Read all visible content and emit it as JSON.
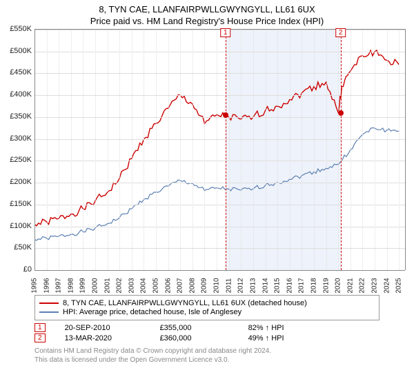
{
  "title_line1": "8, TYN CAE, LLANFAIRPWLLGWYNGYLL, LL61 6UX",
  "title_line2": "Price paid vs. HM Land Registry's House Price Index (HPI)",
  "chart": {
    "background_color": "#ffffff",
    "grid_color": "#dddddd",
    "axis_color": "#888888",
    "font_label_size": 11,
    "ylim": [
      0,
      550000
    ],
    "ytick_step": 50000,
    "ytick_labels": [
      "£0",
      "£50K",
      "£100K",
      "£150K",
      "£200K",
      "£250K",
      "£300K",
      "£350K",
      "£400K",
      "£450K",
      "£500K",
      "£550K"
    ],
    "xlim_years": [
      1995,
      2025.5
    ],
    "xtick_years": [
      1995,
      1996,
      1997,
      1998,
      1999,
      2000,
      2001,
      2002,
      2003,
      2004,
      2005,
      2006,
      2007,
      2008,
      2009,
      2010,
      2011,
      2012,
      2013,
      2014,
      2015,
      2016,
      2017,
      2018,
      2019,
      2020,
      2021,
      2022,
      2023,
      2024,
      2025
    ],
    "shaded_region": {
      "from_year": 2010.72,
      "to_year": 2020.2,
      "color": "#eef2fa"
    },
    "series": {
      "price": {
        "color": "#cc0000",
        "width": 1.4,
        "noise": 9000,
        "points_year_value": [
          [
            1995,
            105000
          ],
          [
            1996,
            110000
          ],
          [
            1997,
            118000
          ],
          [
            1998,
            128000
          ],
          [
            1999,
            140000
          ],
          [
            2000,
            158000
          ],
          [
            2001,
            178000
          ],
          [
            2002,
            210000
          ],
          [
            2003,
            255000
          ],
          [
            2004,
            300000
          ],
          [
            2005,
            335000
          ],
          [
            2006,
            370000
          ],
          [
            2007,
            400000
          ],
          [
            2008,
            380000
          ],
          [
            2009,
            335000
          ],
          [
            2010,
            355000
          ],
          [
            2011,
            350000
          ],
          [
            2012,
            345000
          ],
          [
            2013,
            350000
          ],
          [
            2014,
            365000
          ],
          [
            2015,
            375000
          ],
          [
            2016,
            390000
          ],
          [
            2017,
            405000
          ],
          [
            2018,
            420000
          ],
          [
            2019,
            430000
          ],
          [
            2020,
            360000
          ],
          [
            2020.3,
            420000
          ],
          [
            2021,
            455000
          ],
          [
            2022,
            490000
          ],
          [
            2023,
            500000
          ],
          [
            2024,
            480000
          ],
          [
            2025,
            470000
          ]
        ]
      },
      "hpi": {
        "color": "#5b7fb2",
        "width": 1.2,
        "noise": 5000,
        "points_year_value": [
          [
            1995,
            70000
          ],
          [
            1996,
            73000
          ],
          [
            1997,
            77000
          ],
          [
            1998,
            82000
          ],
          [
            1999,
            88000
          ],
          [
            2000,
            96000
          ],
          [
            2001,
            106000
          ],
          [
            2002,
            120000
          ],
          [
            2003,
            140000
          ],
          [
            2004,
            162000
          ],
          [
            2005,
            178000
          ],
          [
            2006,
            192000
          ],
          [
            2007,
            205000
          ],
          [
            2008,
            198000
          ],
          [
            2009,
            182000
          ],
          [
            2010,
            188000
          ],
          [
            2011,
            185000
          ],
          [
            2012,
            183000
          ],
          [
            2013,
            186000
          ],
          [
            2014,
            194000
          ],
          [
            2015,
            200000
          ],
          [
            2016,
            208000
          ],
          [
            2017,
            216000
          ],
          [
            2018,
            225000
          ],
          [
            2019,
            233000
          ],
          [
            2020,
            242000
          ],
          [
            2021,
            275000
          ],
          [
            2022,
            310000
          ],
          [
            2023,
            325000
          ],
          [
            2024,
            320000
          ],
          [
            2025,
            318000
          ]
        ]
      }
    },
    "markers": [
      {
        "tag": "1",
        "year": 2010.72,
        "value": 355000,
        "date": "20-SEP-2010",
        "price": "£355,000",
        "hpi_pct": "82% ↑ HPI"
      },
      {
        "tag": "2",
        "year": 2020.2,
        "value": 360000,
        "date": "13-MAR-2020",
        "price": "£360,000",
        "hpi_pct": "49% ↑ HPI"
      }
    ]
  },
  "legend": {
    "series1_label": "8, TYN CAE, LLANFAIRPWLLGWYNGYLL, LL61 6UX (detached house)",
    "series2_label": "HPI: Average price, detached house, Isle of Anglesey"
  },
  "footer_line1": "Contains HM Land Registry data © Crown copyright and database right 2024.",
  "footer_line2": "This data is licensed under the Open Government Licence v3.0."
}
